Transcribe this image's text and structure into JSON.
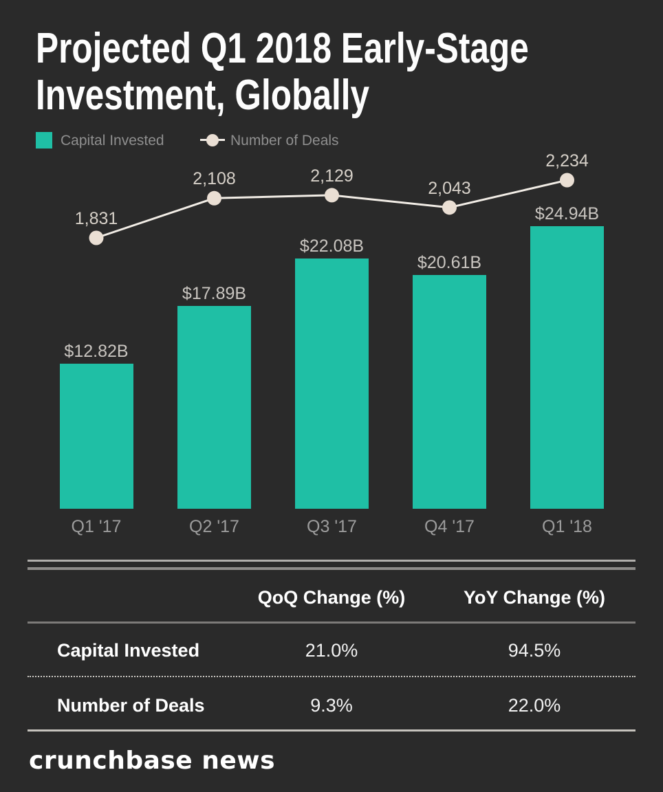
{
  "title": "Projected Q1 2018 Early-Stage\nInvestment, Globally",
  "colors": {
    "background": "#2a2a2a",
    "bar": "#1fbfa5",
    "line": "#f2ede6",
    "dot": "#eadfd4",
    "title_text": "#fdfdfd",
    "table_text": "#ffffff"
  },
  "legend": {
    "capital_label": "Capital Invested",
    "deals_label": "Number of Deals"
  },
  "chart_data": {
    "type": "bar+line combo",
    "categories": [
      "Q1 '17",
      "Q2 '17",
      "Q3 '17",
      "Q4 '17",
      "Q1 '18"
    ],
    "series": [
      {
        "name": "Capital Invested",
        "type": "bar",
        "unit": "USD billions",
        "values": [
          12.82,
          17.89,
          22.08,
          20.61,
          24.94
        ],
        "labels": [
          "$12.82B",
          "$17.89B",
          "$22.08B",
          "$20.61B",
          "$24.94B"
        ],
        "color": "#1fbfa5"
      },
      {
        "name": "Number of Deals",
        "type": "line",
        "values": [
          1831,
          2108,
          2129,
          2043,
          2234
        ],
        "labels": [
          "1,831",
          "2,108",
          "2,129",
          "2,043",
          "2,234"
        ],
        "color": "#eadfd4"
      }
    ],
    "title": "Projected Q1 2018 Early-Stage Investment, Globally",
    "xlabel": "",
    "ylabel": "",
    "grid": false,
    "legend_position": "top-left",
    "data_labels": true
  },
  "table": {
    "columns": [
      "QoQ Change (%)",
      "YoY Change (%)"
    ],
    "rows": [
      {
        "label": "Capital Invested",
        "qoq": "21.0%",
        "yoy": "94.5%"
      },
      {
        "label": "Number of Deals",
        "qoq": "9.3%",
        "yoy": "22.0%"
      }
    ]
  },
  "footer": {
    "logo_text": "crunchbase news"
  }
}
